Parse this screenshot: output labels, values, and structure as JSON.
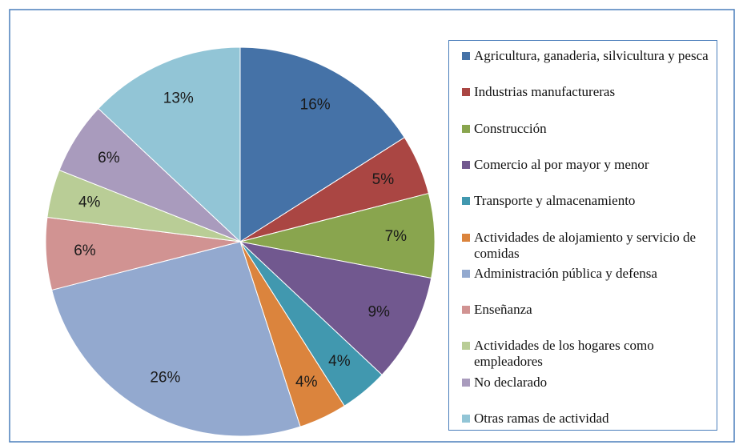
{
  "chart_data": {
    "type": "pie",
    "categories": [
      "Agricultura, ganaderia, silvicultura y pesca",
      "Industrias manufactureras",
      "Construcción",
      "Comercio al por mayor y menor",
      "Transporte y almacenamiento",
      "Actividades de alojamiento y servicio de comidas",
      "Administración pública y defensa",
      "Enseñanza",
      "Actividades de los hogares como empleadores",
      "No declarado",
      "Otras ramas de actividad"
    ],
    "values": [
      16,
      5,
      7,
      9,
      4,
      4,
      26,
      6,
      4,
      6,
      13
    ],
    "value_labels": [
      "16%",
      "5%",
      "7%",
      "9%",
      "4%",
      "4%",
      "26%",
      "6%",
      "4%",
      "6%",
      "13%"
    ],
    "colors": [
      "#4572a7",
      "#aa4643",
      "#89a54e",
      "#71588f",
      "#4198af",
      "#db843d",
      "#93a9cf",
      "#d19392",
      "#b9cd96",
      "#a99bbd",
      "#92c5d6"
    ],
    "legend": "right"
  }
}
